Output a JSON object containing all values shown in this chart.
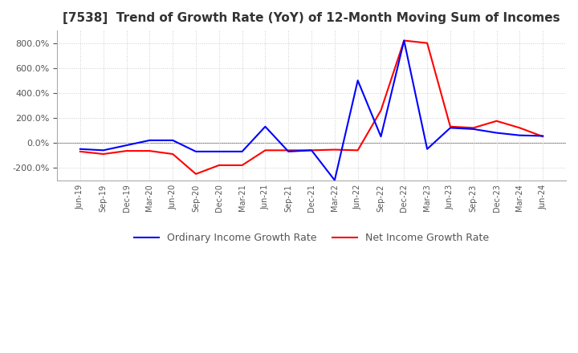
{
  "title": "[7538]  Trend of Growth Rate (YoY) of 12-Month Moving Sum of Incomes",
  "x_labels": [
    "Jun-19",
    "Sep-19",
    "Dec-19",
    "Mar-20",
    "Jun-20",
    "Sep-20",
    "Dec-20",
    "Mar-21",
    "Jun-21",
    "Sep-21",
    "Dec-21",
    "Mar-22",
    "Jun-22",
    "Sep-22",
    "Dec-22",
    "Mar-23",
    "Jun-23",
    "Sep-23",
    "Dec-23",
    "Mar-24",
    "Jun-24"
  ],
  "ordinary_income": [
    -50,
    -60,
    -20,
    20,
    20,
    -70,
    -70,
    -70,
    130,
    -70,
    -60,
    -300,
    500,
    50,
    820,
    -50,
    120,
    110,
    80,
    60,
    55
  ],
  "net_income": [
    -70,
    -90,
    -65,
    -65,
    -90,
    -250,
    -180,
    -180,
    -60,
    -60,
    -60,
    -55,
    -60,
    260,
    820,
    800,
    130,
    120,
    175,
    120,
    50
  ],
  "ordinary_color": "#0000ff",
  "net_color": "#ff0000",
  "ylim_min": -300,
  "ylim_max": 900,
  "yticks": [
    -200,
    0,
    200,
    400,
    600,
    800
  ],
  "legend_label_ordinary": "Ordinary Income Growth Rate",
  "legend_label_net": "Net Income Growth Rate",
  "background_color": "#ffffff",
  "title_fontsize": 11,
  "grid_color": "#cccccc",
  "tick_color": "#555555",
  "title_color": "#333333"
}
